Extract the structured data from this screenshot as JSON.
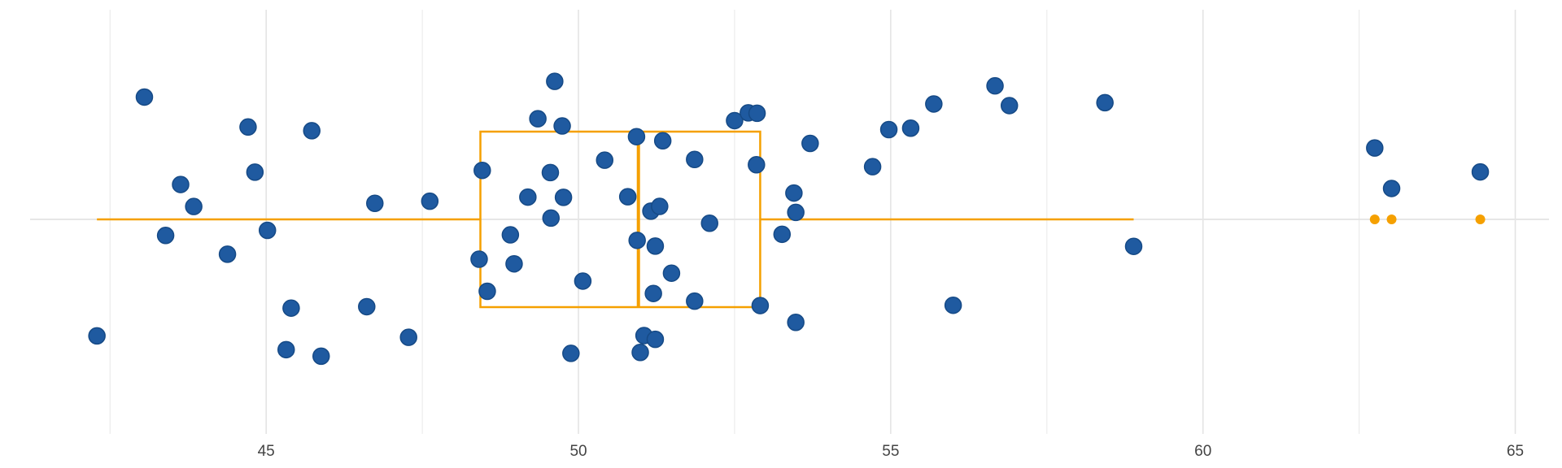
{
  "chart_data": {
    "type": "box",
    "xlim": [
      41.22,
      65.54
    ],
    "xticks": [
      45,
      50,
      55,
      60,
      65
    ],
    "xminorticks": [
      42.5,
      47.5,
      52.5,
      57.5,
      62.5
    ],
    "grid": true,
    "box": {
      "whislo": 42.29,
      "q1": 48.43,
      "med": 50.96,
      "q3": 52.91,
      "whishi": 58.89,
      "color": "#f5a000"
    },
    "outliers": [
      62.75,
      63.02,
      64.44
    ],
    "points_color": "#1f5aa0",
    "values": [
      42.29,
      43.05,
      43.39,
      43.63,
      43.84,
      44.38,
      44.71,
      44.82,
      45.02,
      45.32,
      45.4,
      45.73,
      45.88,
      46.61,
      46.74,
      47.28,
      47.62,
      48.41,
      48.46,
      48.54,
      48.91,
      48.97,
      49.19,
      49.35,
      49.55,
      49.56,
      49.62,
      49.74,
      49.76,
      49.88,
      50.07,
      50.42,
      50.79,
      50.93,
      50.94,
      50.99,
      51.05,
      51.16,
      51.2,
      51.23,
      51.23,
      51.3,
      51.35,
      51.49,
      51.86,
      51.86,
      52.1,
      52.5,
      52.72,
      52.85,
      52.86,
      52.91,
      53.26,
      53.45,
      53.48,
      53.48,
      53.71,
      54.71,
      54.97,
      55.32,
      55.69,
      56.0,
      56.67,
      56.9,
      58.43,
      58.89,
      62.75,
      63.02,
      64.44
    ]
  }
}
